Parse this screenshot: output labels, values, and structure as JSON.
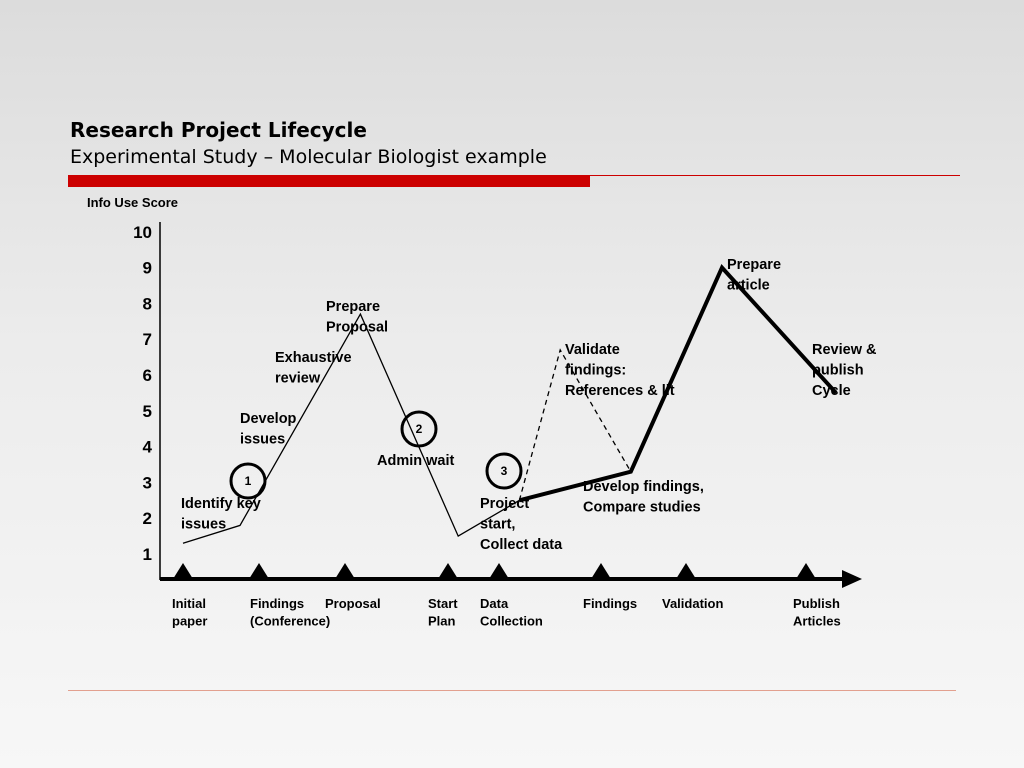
{
  "header": {
    "title": "Research Project Lifecycle",
    "subtitle": "Experimental Study – Molecular Biologist example"
  },
  "chart_data": {
    "type": "line",
    "ylabel": "Info Use Score",
    "yticks": [
      "10",
      "9",
      "8",
      "7",
      "6",
      "5",
      "4",
      "3",
      "2",
      "1"
    ],
    "ylim": [
      0.5,
      10
    ],
    "x_stages": [
      "Initial paper",
      "Findings (Conference)",
      "Proposal",
      "Start Plan",
      "Data Collection",
      "Findings",
      "Validation",
      "Publish Articles"
    ],
    "series": [
      {
        "style": "thin",
        "points": [
          {
            "x": 0.0,
            "y": 1.3
          },
          {
            "x": 0.75,
            "y": 1.8
          },
          {
            "x": 2.15,
            "y": 7.7
          },
          {
            "x": 3.2,
            "y": 1.5
          },
          {
            "x": 4.2,
            "y": 2.5
          }
        ]
      },
      {
        "style": "thick",
        "points": [
          {
            "x": 4.2,
            "y": 2.5
          },
          {
            "x": 5.35,
            "y": 3.3
          },
          {
            "x": 6.3,
            "y": 9.0
          },
          {
            "x": 7.25,
            "y": 5.5
          }
        ]
      },
      {
        "style": "dashed",
        "points": [
          {
            "x": 4.2,
            "y": 2.5
          },
          {
            "x": 4.6,
            "y": 6.7
          },
          {
            "x": 5.35,
            "y": 3.3
          }
        ]
      }
    ],
    "annotations": [
      {
        "lines": [
          "Identify key",
          "issues"
        ]
      },
      {
        "lines": [
          "Develop",
          "issues"
        ]
      },
      {
        "lines": [
          "Exhaustive",
          "review"
        ]
      },
      {
        "lines": [
          "Prepare",
          "Proposal"
        ]
      },
      {
        "lines": [
          "Admin wait"
        ]
      },
      {
        "lines": [
          "Project",
          "start,",
          "Collect data"
        ]
      },
      {
        "lines": [
          "Validate",
          "findings:",
          "References & lit"
        ]
      },
      {
        "lines": [
          "Develop findings,",
          "Compare studies"
        ]
      },
      {
        "lines": [
          "Prepare",
          "article"
        ]
      },
      {
        "lines": [
          "Review &",
          "publish",
          "Cycle"
        ]
      }
    ],
    "markers": [
      "1",
      "2",
      "3"
    ],
    "milestones": [
      {
        "lines": [
          "Initial",
          "paper"
        ]
      },
      {
        "lines": [
          "Findings",
          "(Conference)"
        ]
      },
      {
        "lines": [
          "Proposal"
        ]
      },
      {
        "lines": [
          "Start",
          "Plan"
        ]
      },
      {
        "lines": [
          "Data",
          "Collection"
        ]
      },
      {
        "lines": [
          "Findings"
        ]
      },
      {
        "lines": [
          "Validation"
        ]
      },
      {
        "lines": [
          "Publish",
          "Articles"
        ]
      }
    ]
  }
}
